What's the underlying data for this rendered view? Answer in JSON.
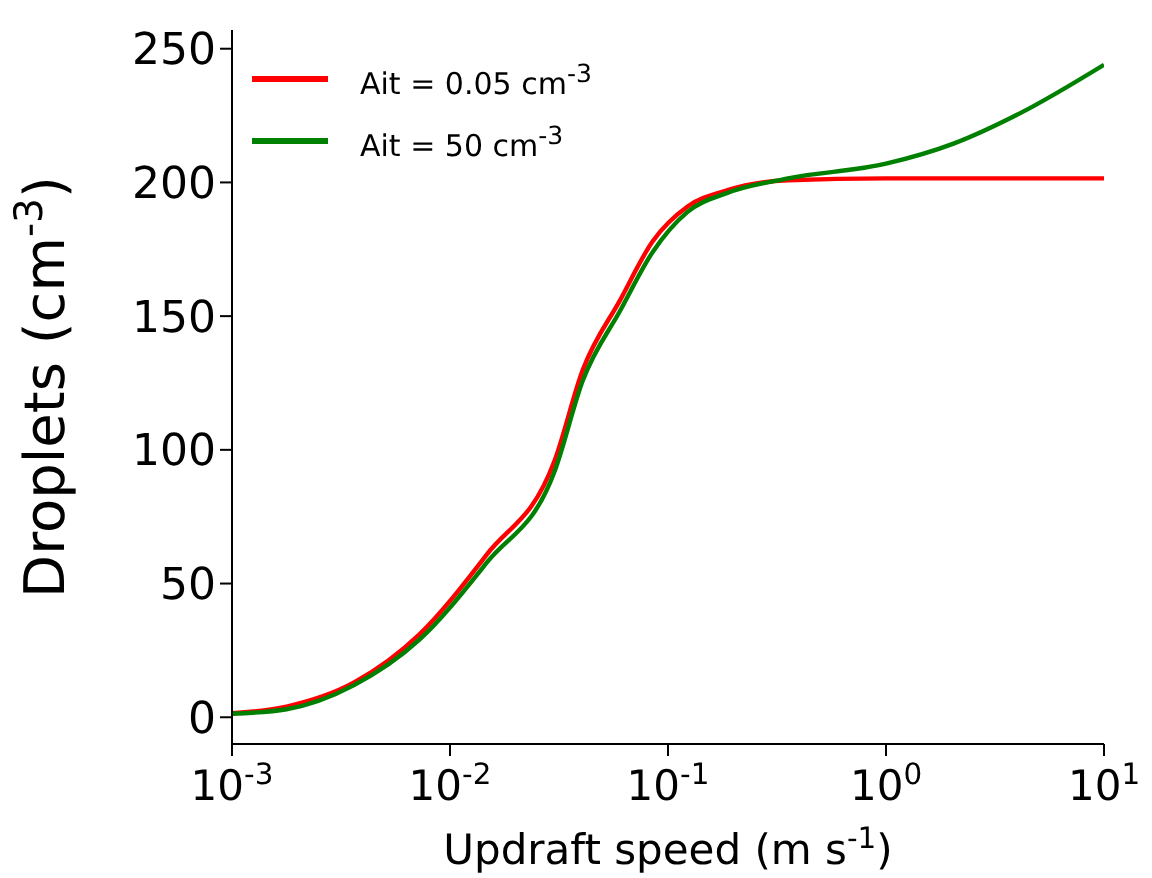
{
  "chart_data": {
    "type": "line",
    "xlabel": "Updraft speed (m s$^{-1}$)",
    "ylabel": "Droplets (cm$^{-3}$)",
    "log": "x",
    "xlim": [
      0.001,
      10
    ],
    "xticks": [
      {
        "value": 0.001,
        "label": "10$^{-3}$"
      },
      {
        "value": 0.01,
        "label": "10$^{-2}$"
      },
      {
        "value": 0.1,
        "label": "10$^{-1}$"
      },
      {
        "value": 1,
        "label": "10$^{0}$"
      },
      {
        "value": 10,
        "label": "10$^{1}$"
      }
    ],
    "ylim": [
      -10,
      257
    ],
    "yticks": [
      0,
      50,
      100,
      150,
      200,
      250
    ],
    "grid": false,
    "legend": "top left",
    "marker": "none",
    "line_style": "solid",
    "series": [
      {
        "name": "Ait = 0.05 cm$^{-3}$",
        "color": "#ff0000",
        "x": [
          0.001,
          0.00178,
          0.00363,
          0.00724,
          0.0148,
          0.0302,
          0.0407,
          0.0603,
          0.0851,
          0.123,
          0.186,
          0.355,
          1,
          10
        ],
        "values": [
          1.5,
          4,
          13,
          31,
          61,
          96,
          130,
          156,
          178,
          191,
          197,
          200.8,
          201.5,
          201.5
        ]
      },
      {
        "name": "Ait = 50 cm$^{-3}$",
        "color": "#008000",
        "x": [
          0.001,
          0.00178,
          0.00363,
          0.00724,
          0.0148,
          0.0302,
          0.0407,
          0.0603,
          0.0851,
          0.123,
          0.186,
          0.355,
          1,
          2.04,
          4.15,
          10
        ],
        "values": [
          1.3,
          3,
          12,
          29,
          58,
          92,
          126,
          152,
          174,
          189,
          196,
          201.5,
          207,
          214.5,
          226,
          244
        ]
      }
    ]
  }
}
